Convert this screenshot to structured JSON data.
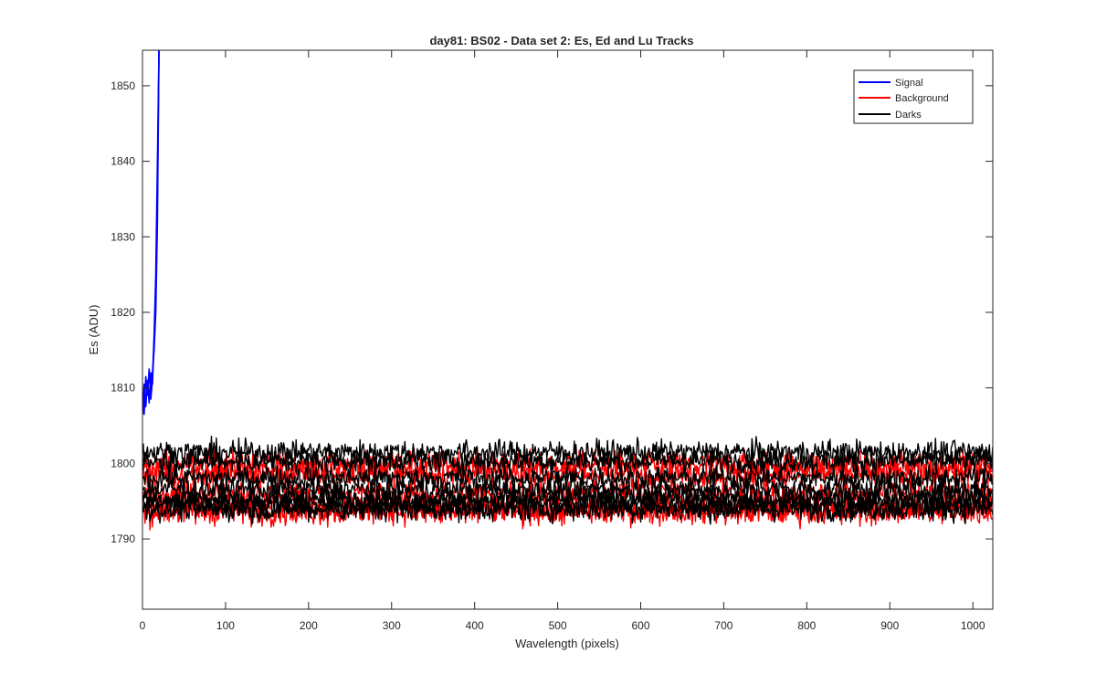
{
  "chart_data": {
    "type": "line",
    "title": "day81: BS02 - Data set 2: Es, Ed and Lu Tracks",
    "xlabel": "Wavelength (pixels)",
    "ylabel": "Es (ADU)",
    "xlim": [
      0,
      1024
    ],
    "ylim": [
      1780.7,
      1854.7
    ],
    "x_ticks": [
      0,
      100,
      200,
      300,
      400,
      500,
      600,
      700,
      800,
      900,
      1000
    ],
    "y_ticks": [
      1790,
      1800,
      1810,
      1820,
      1830,
      1840,
      1850
    ],
    "grid": false,
    "legend": {
      "placement": "top-right",
      "entries": [
        {
          "label": "Signal",
          "color": "#0000ff"
        },
        {
          "label": "Background",
          "color": "#ff0000"
        },
        {
          "label": "Darks",
          "color": "#000000"
        }
      ]
    },
    "series": [
      {
        "group": "Signal",
        "color": "#0000ff",
        "points": [
          [
            0,
            1806.5
          ],
          [
            2,
            1810.5
          ],
          [
            4,
            1807.5
          ],
          [
            6,
            1811
          ],
          [
            8,
            1808
          ],
          [
            10,
            1812
          ],
          [
            12,
            1810.5
          ],
          [
            14,
            1816
          ],
          [
            16,
            1822
          ],
          [
            18,
            1836
          ],
          [
            20,
            1856
          ]
        ]
      },
      {
        "group": "Signal",
        "color": "#0000ff",
        "points": [
          [
            0,
            1808
          ],
          [
            2,
            1806.5
          ],
          [
            4,
            1811.5
          ],
          [
            6,
            1809
          ],
          [
            8,
            1812.5
          ],
          [
            10,
            1808.5
          ],
          [
            12,
            1811
          ],
          [
            14,
            1817
          ],
          [
            16,
            1825
          ],
          [
            18,
            1840
          ],
          [
            20,
            1856
          ]
        ]
      },
      {
        "group": "Signal",
        "color": "#0000ff",
        "points": [
          [
            0,
            1807
          ],
          [
            2,
            1809
          ],
          [
            4,
            1808.5
          ],
          [
            6,
            1810
          ],
          [
            8,
            1809.5
          ],
          [
            10,
            1810
          ],
          [
            12,
            1812
          ],
          [
            14,
            1815
          ],
          [
            16,
            1820
          ],
          [
            18,
            1832
          ],
          [
            20,
            1856
          ]
        ]
      },
      {
        "group": "Background",
        "color": "#ff0000",
        "level": 1799.8,
        "noise": 1.3
      },
      {
        "group": "Background",
        "color": "#ff0000",
        "level": 1798.6,
        "noise": 1.3
      },
      {
        "group": "Background",
        "color": "#ff0000",
        "level": 1796.0,
        "noise": 1.3
      },
      {
        "group": "Background",
        "color": "#ff0000",
        "level": 1794.2,
        "noise": 1.3
      },
      {
        "group": "Background",
        "color": "#ff0000",
        "level": 1793.7,
        "noise": 1.3
      },
      {
        "group": "Darks",
        "color": "#000000",
        "level": 1801.5,
        "noise": 1.1
      },
      {
        "group": "Darks",
        "color": "#000000",
        "level": 1800.3,
        "noise": 1.1
      },
      {
        "group": "Darks",
        "color": "#000000",
        "level": 1798.1,
        "noise": 1.1
      },
      {
        "group": "Darks",
        "color": "#000000",
        "level": 1796.6,
        "noise": 1.1
      },
      {
        "group": "Darks",
        "color": "#000000",
        "level": 1795.3,
        "noise": 1.1
      },
      {
        "group": "Darks",
        "color": "#000000",
        "level": 1794.6,
        "noise": 1.1
      },
      {
        "group": "Darks",
        "color": "#000000",
        "level": 1793.9,
        "noise": 1.1
      }
    ]
  }
}
